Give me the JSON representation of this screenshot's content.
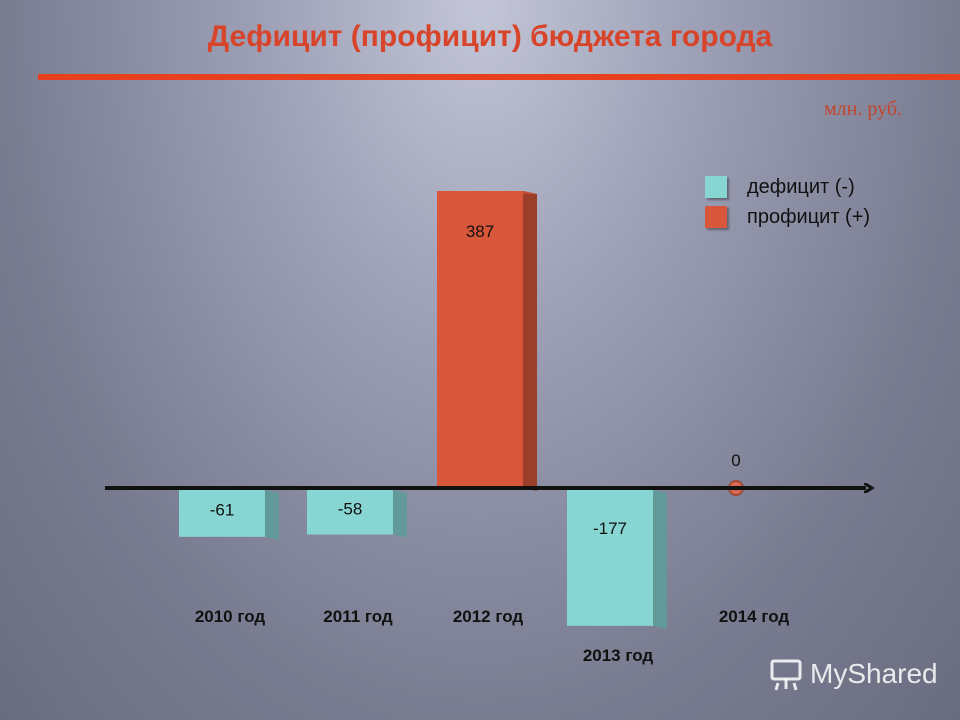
{
  "chart_data": {
    "type": "bar",
    "title": "Дефицит (профицит) бюджета города",
    "unit": "млн. руб.",
    "categories": [
      "2010 год",
      "2011 год",
      "2012 год",
      "2013 год",
      "2014 год"
    ],
    "values": [
      -61,
      -58,
      387,
      -177,
      0
    ],
    "value_labels": [
      "-61",
      "-58",
      "387",
      "-177",
      "0"
    ],
    "legend": [
      {
        "label": "дефицит (-)",
        "color": "#88d6d4"
      },
      {
        "label": "профицит (+)",
        "color": "#d8573a"
      }
    ],
    "legend_position": "top-right",
    "grid": false,
    "colors": {
      "deficit": "#88d6d4",
      "surplus": "#d8573a",
      "zero_point": "#d86a4f",
      "title": "#d8442a"
    }
  },
  "watermark": {
    "text": "MyShared",
    "icon": "presentation-board-icon"
  }
}
